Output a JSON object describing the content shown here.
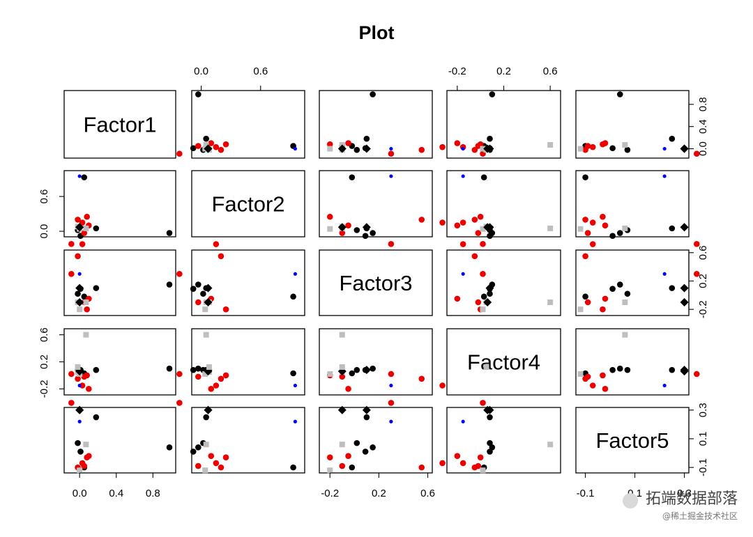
{
  "chart_data": {
    "type": "scatter",
    "title": "Plot",
    "variables": [
      "Factor1",
      "Factor2",
      "Factor3",
      "Factor4",
      "Factor5"
    ],
    "ranges": [
      [
        -0.12,
        1.0
      ],
      [
        -0.05,
        1.0
      ],
      [
        -0.25,
        0.6
      ],
      [
        -0.25,
        0.65
      ],
      [
        -0.12,
        0.3
      ]
    ],
    "ticks": [
      [
        0.0,
        0.4,
        0.8
      ],
      [
        0.0,
        0.6
      ],
      [
        -0.2,
        0.2,
        0.6
      ],
      [
        -0.2,
        0.2,
        0.6
      ],
      [
        -0.1,
        0.1,
        0.3
      ]
    ],
    "tick_labels": [
      [
        "0.0",
        "0.4",
        "0.8"
      ],
      [
        "0.0",
        "0.6"
      ],
      [
        "-0.2",
        "0.2",
        "0.6"
      ],
      [
        "-0.2",
        "0.2",
        "0.6"
      ],
      [
        "-0.1",
        "0.1",
        "0.3"
      ]
    ],
    "point_styles": {
      "black": {
        "color": "#000000",
        "shape": "circle"
      },
      "red": {
        "color": "#ee0000",
        "shape": "circle"
      },
      "gray": {
        "color": "#bebebe",
        "shape": "square"
      },
      "blue": {
        "color": "#0000ff",
        "shape": "small-circle"
      },
      "black-diamond": {
        "color": "#000000",
        "shape": "diamond"
      }
    },
    "points": [
      {
        "style": "black",
        "values": [
          0.05,
          0.93,
          -0.02,
          0.03,
          -0.1
        ]
      },
      {
        "style": "black",
        "values": [
          -0.02,
          0.02,
          0.02,
          0.08,
          0.07
        ]
      },
      {
        "style": "black",
        "values": [
          0.01,
          -0.08,
          0.09,
          0.08,
          0.01
        ]
      },
      {
        "style": "black",
        "values": [
          0.18,
          0.05,
          0.1,
          0.08,
          0.25
        ]
      },
      {
        "style": "black",
        "values": [
          0.98,
          -0.03,
          0.15,
          0.1,
          0.04
        ]
      },
      {
        "style": "red",
        "values": [
          -0.02,
          0.2,
          0.55,
          -0.05,
          -0.1
        ]
      },
      {
        "style": "red",
        "values": [
          0.05,
          -0.03,
          -0.1,
          -0.02,
          -0.09
        ]
      },
      {
        "style": "red",
        "values": [
          0.03,
          0.15,
          0.72,
          -0.15,
          -0.07
        ]
      },
      {
        "style": "red",
        "values": [
          -0.09,
          -0.22,
          0.3,
          0.02,
          0.35
        ]
      },
      {
        "style": "red",
        "values": [
          0.08,
          0.25,
          -0.2,
          0.0,
          -0.03
        ]
      },
      {
        "style": "red",
        "values": [
          0.1,
          0.1,
          -0.05,
          -0.2,
          -0.02
        ]
      },
      {
        "style": "gray",
        "values": [
          -0.02,
          0.08,
          -0.1,
          0.05,
          0.6
        ]
      },
      {
        "style": "gray",
        "values": [
          0.07,
          0.05,
          -0.1,
          0.6,
          0.06
        ]
      },
      {
        "style": "gray",
        "values": [
          0.0,
          0.04,
          -0.2,
          0.02,
          -0.12
        ]
      },
      {
        "style": "blue",
        "values": [
          0.0,
          0.95,
          0.3,
          -0.15,
          0.22
        ]
      },
      {
        "style": "black-diamond",
        "values": [
          0.0,
          0.07,
          -0.1,
          0.06,
          0.3
        ]
      },
      {
        "style": "black-diamond",
        "values": [
          0.0,
          0.07,
          0.1,
          0.08,
          0.3
        ]
      }
    ],
    "layout": "pairs"
  },
  "watermark": {
    "main": "拓端数据部落",
    "sub": "@稀土掘金技术社区"
  }
}
